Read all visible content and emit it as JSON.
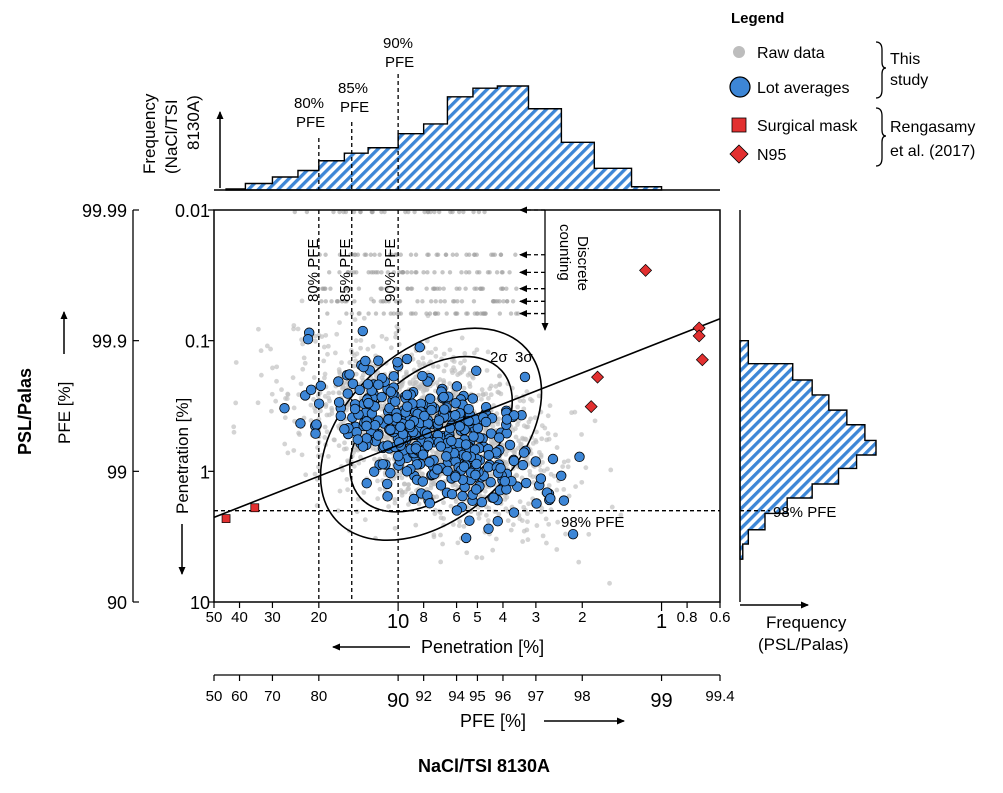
{
  "legend": {
    "title": "Legend",
    "raw": "Raw data",
    "lots": "Lot averages",
    "surgical": "Surgical mask",
    "n95": "N95",
    "this_study": [
      "This",
      "study"
    ],
    "rengasamy": [
      "Rengasamy",
      "et al. (2017)"
    ]
  },
  "labels": {
    "left_title": "PSL/Palas",
    "left_pfe": "PFE [%]",
    "inner_penetration": "Penetration [%]",
    "bottom_penetration": "Penetration [%]",
    "bottom_pfe": "PFE [%]",
    "bottom_title": "NaCl/TSI 8130A",
    "top_freq": [
      "Frequency",
      "(NaCl/TSI",
      "8130A)"
    ],
    "right_freq": [
      "Frequency",
      "(PSL/Palas)"
    ],
    "discrete": [
      "Discrete",
      "counting"
    ],
    "sigma2": "2σ",
    "sigma3": "3σ",
    "pfe80": "80% PFE",
    "pfe85": "85% PFE",
    "pfe90": "90% PFE",
    "pfe98": "98% PFE",
    "top80": [
      "80%",
      "PFE"
    ],
    "top85": [
      "85%",
      "PFE"
    ],
    "top90": [
      "90%",
      "PFE"
    ]
  },
  "colors": {
    "blue": "#3d86d6",
    "red": "#e23030",
    "grey": "#bdbdbd",
    "hatch": "#3d86d6"
  },
  "chart_data": {
    "type": "scatter",
    "x_scale": "log (penetration, reversed)",
    "y_scale": "log (penetration, reversed)",
    "x_ticks_penetration": [
      "50",
      "40",
      "30",
      "20",
      "10",
      "8",
      "6",
      "5",
      "4",
      "3",
      "2",
      "1",
      "0.8",
      "0.6"
    ],
    "x_ticks_penetration_values": [
      50,
      40,
      30,
      20,
      10,
      8,
      6,
      5,
      4,
      3,
      2,
      1,
      0.8,
      0.6
    ],
    "x_ticks_pfe": [
      "50",
      "60",
      "70",
      "80",
      "90",
      "92",
      "94",
      "95",
      "96",
      "97",
      "98",
      "99",
      "99.4"
    ],
    "x_ticks_pfe_values": [
      50,
      60,
      70,
      80,
      90,
      92,
      94,
      95,
      96,
      97,
      98,
      99,
      99.4
    ],
    "y_ticks_penetration": [
      "0.01",
      "0.1",
      "1",
      "10"
    ],
    "y_ticks_penetration_values": [
      0.01,
      0.1,
      1,
      10
    ],
    "y_ticks_pfe": [
      "99.99",
      "99.9",
      "99",
      "90"
    ],
    "y_ticks_pfe_values": [
      99.99,
      99.9,
      99,
      90
    ],
    "xlim_penetration": [
      50,
      0.6
    ],
    "ylim_penetration": [
      10,
      0.01
    ],
    "reference_lines": {
      "vertical_pfe": [
        80,
        85,
        90
      ],
      "horizontal_pfe": [
        98
      ]
    },
    "discrete_levels_penetration": [
      0.022,
      0.03,
      0.04,
      0.05,
      0.062
    ],
    "surgical_mask": [
      {
        "x": 45,
        "y": 2.3
      },
      {
        "x": 35,
        "y": 1.9
      }
    ],
    "n95": [
      {
        "x": 1.15,
        "y": 0.029
      },
      {
        "x": 0.72,
        "y": 0.08
      },
      {
        "x": 0.72,
        "y": 0.092
      },
      {
        "x": 0.7,
        "y": 0.14
      },
      {
        "x": 1.75,
        "y": 0.19
      },
      {
        "x": 1.85,
        "y": 0.32
      }
    ],
    "fit_line": {
      "from": {
        "x": 50,
        "y": 2.25
      },
      "to": {
        "x": 0.6,
        "y": 0.068
      }
    },
    "ellipse_center": {
      "x": 7.5,
      "y": 0.52
    },
    "sigma_ellipses": [
      "2σ",
      "3σ"
    ],
    "lot_averages": {
      "count": 430,
      "center": {
        "x": 7.5,
        "y": 0.52
      },
      "spread_log10": {
        "x": 0.2,
        "y": 0.27
      },
      "correlation": 0.5,
      "seed": 11
    },
    "raw_data": {
      "count": 1700,
      "center": {
        "x": 7.5,
        "y": 0.52
      },
      "spread_log10": {
        "x": 0.24,
        "y": 0.33
      },
      "correlation": 0.45,
      "seed": 7
    },
    "top_histogram_pfe": {
      "bin_edges_penetration": [
        45,
        38,
        30,
        24,
        20,
        16,
        13,
        10,
        8,
        6.5,
        5.2,
        4.2,
        3.2,
        2.4,
        1.8,
        1.3,
        1
      ],
      "counts": [
        1,
        6,
        12,
        18,
        27,
        34,
        39,
        52,
        61,
        86,
        94,
        96,
        75,
        44,
        20,
        3
      ]
    },
    "right_histogram_pfe": {
      "bin_edges_penetration": [
        0.1,
        0.15,
        0.2,
        0.26,
        0.34,
        0.44,
        0.58,
        0.75,
        0.95,
        1.25,
        1.6,
        2.1,
        2.8,
        3.6,
        4.7
      ],
      "counts": [
        6,
        38,
        52,
        64,
        77,
        90,
        98,
        84,
        71,
        52,
        34,
        18,
        6,
        2
      ]
    }
  }
}
